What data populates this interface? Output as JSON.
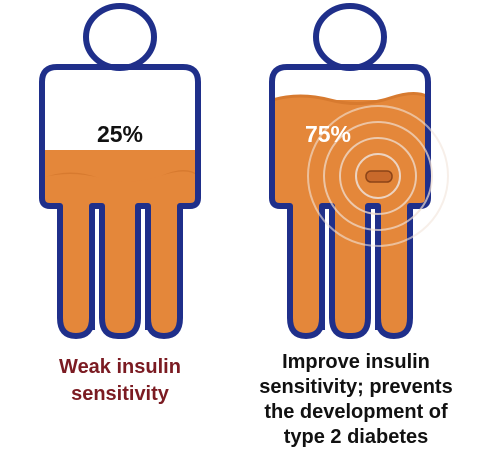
{
  "colors": {
    "outline": "#1f2f8a",
    "fill": "#e4873a",
    "fill_edge": "#d77a2f",
    "left_caption": "#7b1b22",
    "right_caption": "#111111",
    "left_percent": "#111111",
    "right_percent": "#ffffff",
    "device_ring": "#e9d4c6"
  },
  "figures": {
    "left": {
      "percent_label": "25%",
      "fill_level": 0.25,
      "caption_lines": [
        "Weak insulin",
        "sensitivity"
      ]
    },
    "right": {
      "percent_label": "75%",
      "fill_level": 0.75,
      "has_wrist_device": true,
      "caption_lines": [
        "Improve insulin",
        "sensitivity; prevents",
        "the development of",
        "type 2 diabetes"
      ]
    }
  }
}
